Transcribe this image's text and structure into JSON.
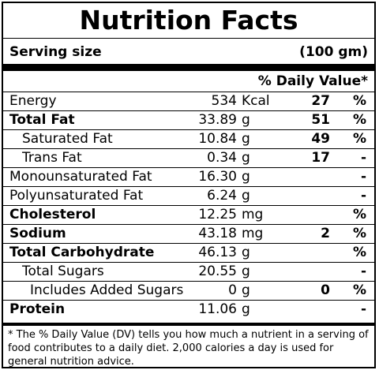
{
  "title": "Nutrition Facts",
  "serving": {
    "label": "Serving size",
    "value": "(100 gm)"
  },
  "dv_header": "% Daily Value*",
  "rows": [
    {
      "name": "Energy",
      "amount": "534",
      "unit": "Kcal",
      "dv": "27",
      "symbol": "%",
      "bold": false,
      "indent": 0
    },
    {
      "name": "Total Fat",
      "amount": "33.89",
      "unit": "g",
      "dv": "51",
      "symbol": "%",
      "bold": true,
      "indent": 0
    },
    {
      "name": "Saturated Fat",
      "amount": "10.84",
      "unit": "g",
      "dv": "49",
      "symbol": "%",
      "bold": false,
      "indent": 1
    },
    {
      "name": "Trans Fat",
      "amount": "0.34",
      "unit": "g",
      "dv": "17",
      "symbol": "-",
      "bold": false,
      "indent": 1
    },
    {
      "name": "Monounsaturated Fat",
      "amount": "16.30",
      "unit": "g",
      "dv": "",
      "symbol": "-",
      "bold": false,
      "indent": 0
    },
    {
      "name": "Polyunsaturated Fat",
      "amount": "6.24",
      "unit": "g",
      "dv": "",
      "symbol": "-",
      "bold": false,
      "indent": 0
    },
    {
      "name": "Cholesterol",
      "amount": "12.25",
      "unit": "mg",
      "dv": "",
      "symbol": "%",
      "bold": true,
      "indent": 0
    },
    {
      "name": "Sodium",
      "amount": "43.18",
      "unit": "mg",
      "dv": "2",
      "symbol": "%",
      "bold": true,
      "indent": 0
    },
    {
      "name": "Total Carbohydrate",
      "amount": "46.13",
      "unit": "g",
      "dv": "",
      "symbol": "%",
      "bold": true,
      "indent": 0
    },
    {
      "name": "Total Sugars",
      "amount": "20.55",
      "unit": "g",
      "dv": "",
      "symbol": "-",
      "bold": false,
      "indent": 1
    },
    {
      "name": "Includes Added Sugars",
      "amount": "0",
      "unit": "g",
      "dv": "0",
      "symbol": "%",
      "bold": false,
      "indent": 2
    },
    {
      "name": "Protein",
      "amount": "11.06",
      "unit": "g",
      "dv": "",
      "symbol": "-",
      "bold": true,
      "indent": 0
    }
  ],
  "footnote": "* The % Daily Value (DV) tells you how much a nutrient in a serving of food contributes to a daily diet. 2,000 calories a day is used for general nutrition advice."
}
